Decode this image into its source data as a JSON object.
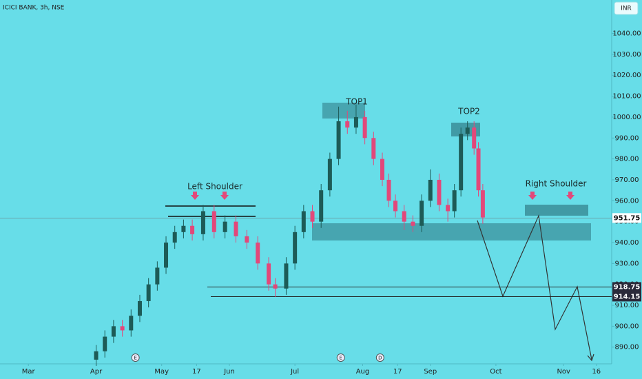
{
  "header": {
    "symbol": "ICICI BANK, 3h, NSE",
    "currency": "INR"
  },
  "chart_data": {
    "type": "candlestick",
    "x": [
      31,
      35,
      39,
      43,
      47,
      51,
      55,
      59,
      63,
      67,
      71,
      75,
      80,
      85,
      90,
      95,
      100,
      105,
      110,
      113,
      118,
      122,
      126,
      130,
      134,
      138,
      142,
      146,
      150,
      154,
      158,
      162,
      165,
      168,
      172,
      176,
      180,
      184,
      188,
      192,
      195,
      198,
      201,
      204,
      206,
      208
    ],
    "open": [
      884,
      888,
      895,
      900,
      898,
      905,
      912,
      920,
      928,
      940,
      945,
      948,
      944,
      955,
      945,
      950,
      943,
      940,
      930,
      920,
      918,
      930,
      945,
      955,
      950,
      965,
      980,
      998,
      995,
      1000,
      990,
      980,
      970,
      960,
      955,
      950,
      948,
      960,
      970,
      958,
      955,
      965,
      992,
      995,
      985,
      965
    ],
    "high": [
      891,
      898,
      903,
      903,
      908,
      915,
      923,
      931,
      943,
      948,
      951,
      951,
      958,
      958,
      953,
      953,
      946,
      943,
      933,
      923,
      933,
      948,
      958,
      958,
      968,
      983,
      1005,
      1003,
      1006,
      1003,
      993,
      983,
      973,
      963,
      958,
      953,
      963,
      975,
      973,
      961,
      968,
      995,
      998,
      998,
      988,
      968
    ],
    "low": [
      881,
      885,
      892,
      895,
      895,
      902,
      909,
      917,
      925,
      937,
      942,
      941,
      941,
      942,
      942,
      940,
      937,
      927,
      917,
      914,
      915,
      927,
      942,
      947,
      947,
      962,
      977,
      992,
      992,
      987,
      977,
      967,
      957,
      952,
      946,
      945,
      945,
      957,
      955,
      950,
      952,
      962,
      989,
      982,
      962,
      949
    ],
    "close": [
      888,
      895,
      900,
      898,
      905,
      912,
      920,
      928,
      940,
      945,
      948,
      944,
      955,
      945,
      950,
      943,
      940,
      930,
      920,
      918,
      930,
      945,
      955,
      950,
      965,
      980,
      998,
      995,
      1000,
      990,
      980,
      970,
      960,
      955,
      950,
      948,
      960,
      970,
      958,
      955,
      965,
      992,
      995,
      985,
      965,
      952
    ],
    "up_color": "#1d5b57",
    "down_color": "#e2487a",
    "xlim": [
      -13,
      267
    ],
    "xticks": [
      {
        "value": 0,
        "label": "Mar"
      },
      {
        "value": 31,
        "label": "Apr"
      },
      {
        "value": 61,
        "label": "May"
      },
      {
        "value": 77,
        "label": "17"
      },
      {
        "value": 92,
        "label": "Jun"
      },
      {
        "value": 122,
        "label": "Jul"
      },
      {
        "value": 153,
        "label": "Aug"
      },
      {
        "value": 169,
        "label": "17"
      },
      {
        "value": 184,
        "label": "Sep"
      },
      {
        "value": 214,
        "label": "Oct"
      },
      {
        "value": 245,
        "label": "Nov"
      },
      {
        "value": 260,
        "label": "16"
      }
    ],
    "ylim": [
      882,
      1056
    ],
    "yticks": [
      {
        "value": 890,
        "label": "890.00"
      },
      {
        "value": 900,
        "label": "900.00"
      },
      {
        "value": 910,
        "label": "910.00"
      },
      {
        "value": 920,
        "label": "920.00"
      },
      {
        "value": 930,
        "label": "930.00"
      },
      {
        "value": 940,
        "label": "940.00"
      },
      {
        "value": 950,
        "label": "950.00"
      },
      {
        "value": 960,
        "label": "960.00"
      },
      {
        "value": 970,
        "label": "970.00"
      },
      {
        "value": 980,
        "label": "980.00"
      },
      {
        "value": 990,
        "label": "990.00"
      },
      {
        "value": 1000,
        "label": "1000.00"
      },
      {
        "value": 1010,
        "label": "1010.00"
      },
      {
        "value": 1020,
        "label": "1020.00"
      },
      {
        "value": 1030,
        "label": "1030.00"
      },
      {
        "value": 1040,
        "label": "1040.00"
      }
    ],
    "last_price": 951.75,
    "levels": [
      918.75,
      914.15
    ],
    "events": [
      {
        "label": "E",
        "x": 49
      },
      {
        "label": "E",
        "x": 143
      },
      {
        "label": "D",
        "x": 161
      }
    ],
    "annotations": [
      "Left Shoulder",
      "TOP1",
      "TOP2",
      "Right Shoulder"
    ]
  }
}
